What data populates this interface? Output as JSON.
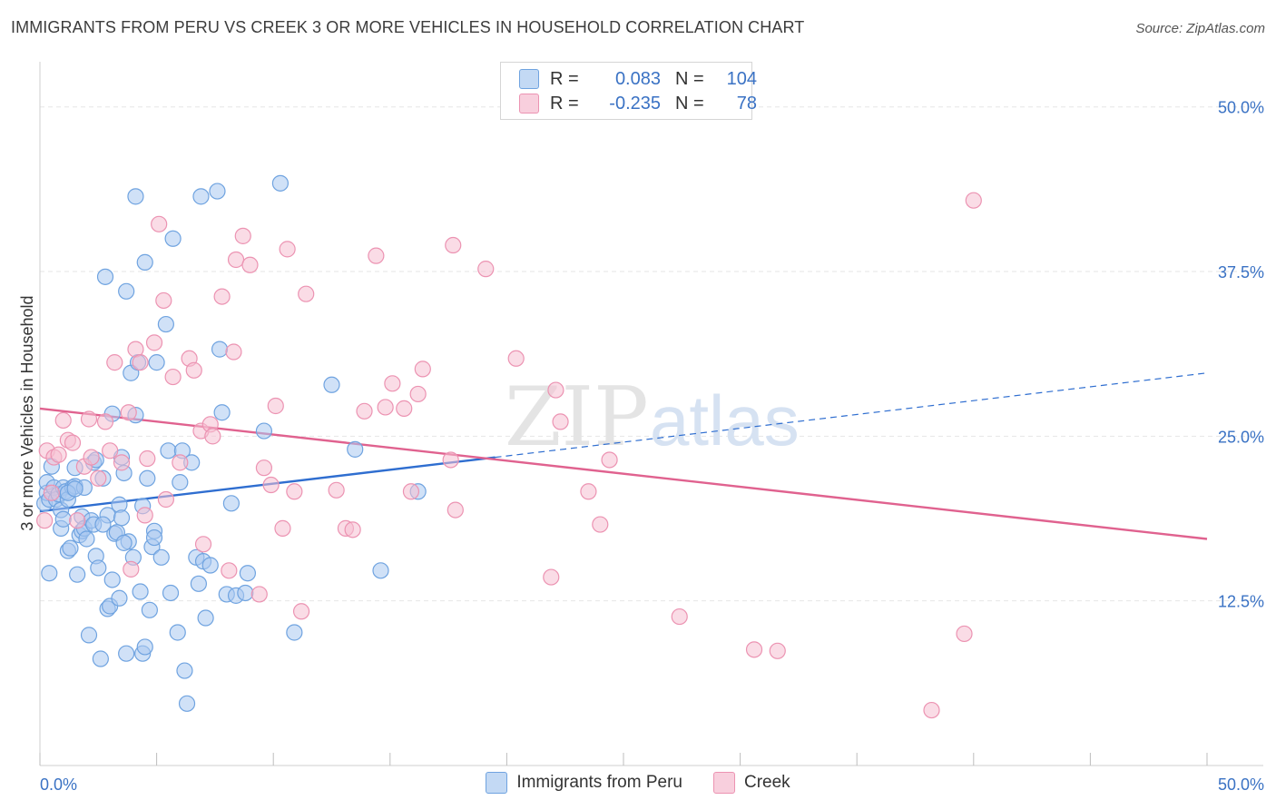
{
  "title": "IMMIGRANTS FROM PERU VS CREEK 3 OR MORE VEHICLES IN HOUSEHOLD CORRELATION CHART",
  "source": "Source: ZipAtlas.com",
  "watermark": {
    "zip": "ZIP",
    "atlas": "atlas"
  },
  "legend_top": {
    "rows": [
      {
        "r_label": "R =",
        "r_value": "0.083",
        "n_label": "N =",
        "n_value": "104"
      },
      {
        "r_label": "R =",
        "r_value": "-0.235",
        "n_label": "N =",
        "n_value": "78"
      }
    ]
  },
  "chart_data": {
    "type": "scatter",
    "title": "IMMIGRANTS FROM PERU VS CREEK 3 OR MORE VEHICLES IN HOUSEHOLD CORRELATION CHART",
    "ylabel": "3 or more Vehicles in Household",
    "xlabel": "",
    "xlim": [
      0,
      50
    ],
    "ylim": [
      0,
      50
    ],
    "x_tick_labels": [
      "0.0%",
      "50.0%"
    ],
    "y_ticks": [
      12.5,
      25.0,
      37.5,
      50.0
    ],
    "y_tick_labels": [
      "12.5%",
      "25.0%",
      "37.5%",
      "50.0%"
    ],
    "grid": true,
    "series": [
      {
        "name": "Immigrants from Peru",
        "color": "#6fa3e0",
        "fill": "#a9c9f0",
        "line_color": "#2f6ed0",
        "trend": {
          "x0": 0,
          "y0": 19.3,
          "x1": 50,
          "y1": 29.8,
          "solid_until": 19.5
        },
        "points": [
          [
            0.2,
            19.9
          ],
          [
            0.3,
            20.7
          ],
          [
            0.3,
            21.5
          ],
          [
            0.4,
            20.2
          ],
          [
            0.4,
            14.6
          ],
          [
            0.5,
            22.7
          ],
          [
            0.6,
            21.1
          ],
          [
            0.7,
            20.2
          ],
          [
            0.8,
            20.6
          ],
          [
            0.9,
            19.4
          ],
          [
            0.9,
            18.0
          ],
          [
            1.0,
            21.1
          ],
          [
            1.0,
            18.7
          ],
          [
            1.1,
            20.8
          ],
          [
            1.2,
            16.3
          ],
          [
            1.2,
            20.2
          ],
          [
            1.3,
            16.5
          ],
          [
            1.4,
            21.1
          ],
          [
            1.5,
            21.2
          ],
          [
            1.5,
            22.6
          ],
          [
            1.6,
            14.5
          ],
          [
            1.7,
            17.5
          ],
          [
            1.8,
            18.9
          ],
          [
            1.8,
            17.8
          ],
          [
            1.9,
            21.1
          ],
          [
            1.9,
            18.0
          ],
          [
            2.0,
            17.2
          ],
          [
            2.1,
            9.9
          ],
          [
            2.2,
            18.6
          ],
          [
            2.3,
            23.0
          ],
          [
            2.3,
            18.3
          ],
          [
            2.4,
            15.9
          ],
          [
            2.5,
            15.0
          ],
          [
            2.6,
            8.1
          ],
          [
            2.7,
            21.8
          ],
          [
            2.8,
            37.1
          ],
          [
            2.9,
            11.9
          ],
          [
            2.9,
            19.0
          ],
          [
            3.0,
            12.1
          ],
          [
            3.1,
            14.1
          ],
          [
            3.2,
            17.6
          ],
          [
            3.3,
            17.7
          ],
          [
            3.4,
            19.8
          ],
          [
            3.4,
            12.7
          ],
          [
            3.5,
            18.8
          ],
          [
            3.5,
            23.4
          ],
          [
            3.6,
            22.2
          ],
          [
            3.7,
            8.5
          ],
          [
            3.7,
            36.0
          ],
          [
            3.8,
            17.0
          ],
          [
            3.9,
            29.8
          ],
          [
            4.0,
            15.8
          ],
          [
            4.1,
            43.2
          ],
          [
            4.2,
            30.6
          ],
          [
            4.3,
            13.2
          ],
          [
            4.4,
            8.5
          ],
          [
            4.5,
            38.2
          ],
          [
            4.5,
            9.0
          ],
          [
            4.6,
            21.8
          ],
          [
            4.7,
            11.8
          ],
          [
            4.8,
            16.6
          ],
          [
            4.9,
            17.8
          ],
          [
            4.9,
            17.3
          ],
          [
            5.0,
            30.6
          ],
          [
            5.2,
            15.8
          ],
          [
            5.4,
            33.5
          ],
          [
            5.5,
            23.9
          ],
          [
            5.6,
            13.1
          ],
          [
            5.7,
            40.0
          ],
          [
            5.9,
            10.1
          ],
          [
            6.0,
            21.5
          ],
          [
            6.1,
            23.9
          ],
          [
            6.2,
            7.2
          ],
          [
            6.3,
            4.7
          ],
          [
            6.5,
            23.0
          ],
          [
            6.7,
            15.8
          ],
          [
            6.8,
            13.8
          ],
          [
            6.9,
            43.2
          ],
          [
            7.0,
            15.5
          ],
          [
            7.1,
            11.2
          ],
          [
            7.3,
            15.2
          ],
          [
            7.6,
            43.6
          ],
          [
            7.7,
            31.6
          ],
          [
            7.8,
            26.8
          ],
          [
            8.0,
            13.0
          ],
          [
            8.2,
            19.9
          ],
          [
            8.4,
            12.9
          ],
          [
            8.8,
            13.1
          ],
          [
            8.9,
            14.6
          ],
          [
            9.6,
            25.4
          ],
          [
            10.3,
            44.2
          ],
          [
            10.9,
            10.1
          ],
          [
            12.5,
            28.9
          ],
          [
            13.5,
            24.0
          ],
          [
            14.6,
            14.8
          ],
          [
            16.2,
            20.8
          ],
          [
            4.1,
            26.6
          ],
          [
            3.1,
            26.7
          ],
          [
            2.4,
            23.2
          ],
          [
            1.2,
            20.7
          ],
          [
            1.5,
            21.0
          ],
          [
            2.7,
            18.3
          ],
          [
            4.4,
            19.7
          ],
          [
            3.6,
            16.9
          ]
        ]
      },
      {
        "name": "Creek",
        "color": "#ec93b2",
        "fill": "#f6bfd2",
        "line_color": "#e0628f",
        "trend": {
          "x0": 0,
          "y0": 27.1,
          "x1": 50,
          "y1": 17.2,
          "solid_until": 50
        },
        "points": [
          [
            0.2,
            18.6
          ],
          [
            0.3,
            23.9
          ],
          [
            0.5,
            20.7
          ],
          [
            0.6,
            23.4
          ],
          [
            0.8,
            23.6
          ],
          [
            1.0,
            26.2
          ],
          [
            1.2,
            24.7
          ],
          [
            1.4,
            24.5
          ],
          [
            1.6,
            18.6
          ],
          [
            1.9,
            22.7
          ],
          [
            2.1,
            26.3
          ],
          [
            2.2,
            23.4
          ],
          [
            2.5,
            21.8
          ],
          [
            2.8,
            26.1
          ],
          [
            3.0,
            23.9
          ],
          [
            3.2,
            30.6
          ],
          [
            3.5,
            23.0
          ],
          [
            3.8,
            26.8
          ],
          [
            3.9,
            14.9
          ],
          [
            4.1,
            31.6
          ],
          [
            4.3,
            30.6
          ],
          [
            4.5,
            19.0
          ],
          [
            4.6,
            23.3
          ],
          [
            4.9,
            32.1
          ],
          [
            5.1,
            41.1
          ],
          [
            5.3,
            35.3
          ],
          [
            5.4,
            20.2
          ],
          [
            5.7,
            29.5
          ],
          [
            6.0,
            23.0
          ],
          [
            6.4,
            30.9
          ],
          [
            6.6,
            30.0
          ],
          [
            6.9,
            25.4
          ],
          [
            7.0,
            16.8
          ],
          [
            7.3,
            25.9
          ],
          [
            7.4,
            25.0
          ],
          [
            7.8,
            35.6
          ],
          [
            8.1,
            14.8
          ],
          [
            8.3,
            31.4
          ],
          [
            8.4,
            38.4
          ],
          [
            8.7,
            40.2
          ],
          [
            9.0,
            38.0
          ],
          [
            9.4,
            13.0
          ],
          [
            9.6,
            22.6
          ],
          [
            9.9,
            21.3
          ],
          [
            10.1,
            27.3
          ],
          [
            10.4,
            18.0
          ],
          [
            10.6,
            39.2
          ],
          [
            10.9,
            20.8
          ],
          [
            11.2,
            11.7
          ],
          [
            11.4,
            35.8
          ],
          [
            12.7,
            20.9
          ],
          [
            13.1,
            18.0
          ],
          [
            13.4,
            17.9
          ],
          [
            13.9,
            26.9
          ],
          [
            14.4,
            38.7
          ],
          [
            14.8,
            27.2
          ],
          [
            15.1,
            29.0
          ],
          [
            15.6,
            27.1
          ],
          [
            15.9,
            20.8
          ],
          [
            16.2,
            28.2
          ],
          [
            16.4,
            30.1
          ],
          [
            17.6,
            23.2
          ],
          [
            17.7,
            39.5
          ],
          [
            17.8,
            19.4
          ],
          [
            19.1,
            37.7
          ],
          [
            20.4,
            30.9
          ],
          [
            21.9,
            14.3
          ],
          [
            22.1,
            28.5
          ],
          [
            22.3,
            26.1
          ],
          [
            23.5,
            20.8
          ],
          [
            24.0,
            18.3
          ],
          [
            24.4,
            23.2
          ],
          [
            27.4,
            11.3
          ],
          [
            30.6,
            8.8
          ],
          [
            31.6,
            8.7
          ],
          [
            38.2,
            4.2
          ],
          [
            39.6,
            10.0
          ],
          [
            40.0,
            42.9
          ]
        ]
      }
    ]
  },
  "legend_bottom": [
    {
      "label": "Immigrants from Peru",
      "color": "#a9c9f0",
      "border": "#6fa3e0"
    },
    {
      "label": "Creek",
      "color": "#f6bfd2",
      "border": "#ec93b2"
    }
  ]
}
